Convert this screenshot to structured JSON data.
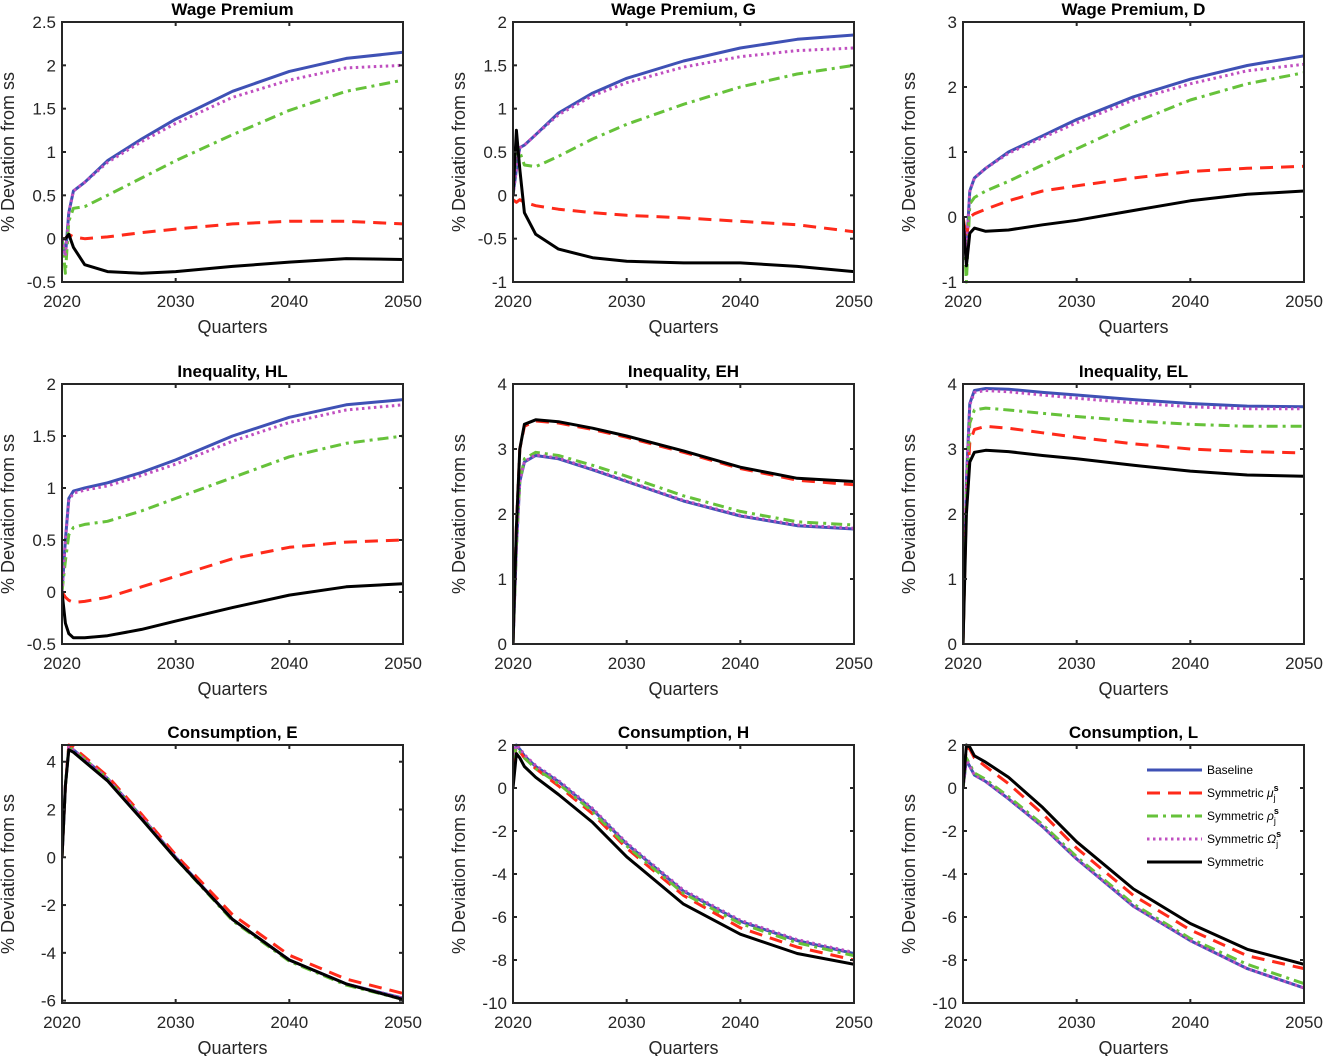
{
  "legend": {
    "placement": "inside top-right of Consumption, L panel",
    "entries": [
      {
        "label": "Baseline",
        "symbol": "",
        "sub": "",
        "sup": ""
      },
      {
        "label": "Symmetric ",
        "symbol": "μ",
        "sub": "j",
        "sup": "s"
      },
      {
        "label": "Symmetric ",
        "symbol": "ρ",
        "sub": "j",
        "sup": "s"
      },
      {
        "label": "Symmetric ",
        "symbol": "Ω",
        "sub": "j",
        "sup": "s"
      },
      {
        "label": "Symmetric",
        "symbol": "",
        "sub": "",
        "sup": ""
      }
    ]
  },
  "series_style": [
    {
      "color": "#3f51b5",
      "dash": "solid"
    },
    {
      "color": "#ff2a1a",
      "dash": "dashed"
    },
    {
      "color": "#66c23a",
      "dash": "dash-dot"
    },
    {
      "color": "#c04fc0",
      "dash": "dotted"
    },
    {
      "color": "#000000",
      "dash": "solid"
    }
  ],
  "chart_data": [
    {
      "type": "line",
      "title": "Wage Premium",
      "xlabel": "Quarters",
      "ylabel": "% Deviation from ss",
      "xlim": [
        2020,
        2050
      ],
      "ylim": [
        -0.5,
        2.5
      ],
      "xticks": [
        2020,
        2030,
        2040,
        2050
      ],
      "yticks": [
        -0.5,
        0,
        0.5,
        1,
        1.5,
        2,
        2.5
      ],
      "x": [
        2020,
        2020.3,
        2020.6,
        2021,
        2022,
        2024,
        2027,
        2030,
        2035,
        2040,
        2045,
        2050
      ],
      "series": [
        {
          "values": [
            0,
            -0.2,
            0.3,
            0.55,
            0.65,
            0.9,
            1.15,
            1.38,
            1.7,
            1.93,
            2.08,
            2.15
          ]
        },
        {
          "values": [
            0,
            0,
            0.05,
            0.02,
            0.0,
            0.02,
            0.07,
            0.11,
            0.17,
            0.2,
            0.2,
            0.17
          ]
        },
        {
          "values": [
            0,
            -0.4,
            0.2,
            0.35,
            0.37,
            0.5,
            0.7,
            0.9,
            1.2,
            1.48,
            1.7,
            1.83
          ]
        },
        {
          "values": [
            0,
            -0.2,
            0.3,
            0.55,
            0.65,
            0.88,
            1.12,
            1.33,
            1.63,
            1.83,
            1.97,
            2.0
          ]
        },
        {
          "values": [
            0,
            0,
            0.05,
            -0.1,
            -0.3,
            -0.38,
            -0.4,
            -0.38,
            -0.32,
            -0.27,
            -0.23,
            -0.24
          ]
        }
      ]
    },
    {
      "type": "line",
      "title": "Wage Premium, G",
      "xlabel": "Quarters",
      "ylabel": "% Deviation from ss",
      "xlim": [
        2020,
        2050
      ],
      "ylim": [
        -1,
        2
      ],
      "xticks": [
        2020,
        2030,
        2040,
        2050
      ],
      "yticks": [
        -1,
        -0.5,
        0,
        0.5,
        1,
        1.5,
        2
      ],
      "x": [
        2020,
        2020.3,
        2020.6,
        2021,
        2022,
        2024,
        2027,
        2030,
        2035,
        2040,
        2045,
        2050
      ],
      "series": [
        {
          "values": [
            0,
            0.3,
            0.55,
            0.58,
            0.7,
            0.95,
            1.18,
            1.35,
            1.55,
            1.7,
            1.8,
            1.85
          ]
        },
        {
          "values": [
            -0.05,
            -0.08,
            -0.05,
            -0.08,
            -0.12,
            -0.16,
            -0.2,
            -0.23,
            -0.26,
            -0.3,
            -0.34,
            -0.42
          ]
        },
        {
          "values": [
            0,
            0.6,
            0.5,
            0.35,
            0.33,
            0.45,
            0.65,
            0.82,
            1.05,
            1.25,
            1.4,
            1.5
          ]
        },
        {
          "values": [
            0,
            0.3,
            0.55,
            0.58,
            0.7,
            0.93,
            1.15,
            1.3,
            1.48,
            1.6,
            1.67,
            1.7
          ]
        },
        {
          "values": [
            0,
            0.75,
            0.3,
            -0.2,
            -0.45,
            -0.62,
            -0.72,
            -0.76,
            -0.78,
            -0.78,
            -0.82,
            -0.88
          ]
        }
      ]
    },
    {
      "type": "line",
      "title": "Wage Premium, D",
      "xlabel": "Quarters",
      "ylabel": "% Deviation from ss",
      "xlim": [
        2020,
        2050
      ],
      "ylim": [
        -1,
        3
      ],
      "xticks": [
        2020,
        2030,
        2040,
        2050
      ],
      "yticks": [
        -1,
        0,
        1,
        2,
        3
      ],
      "x": [
        2020,
        2020.3,
        2020.6,
        2021,
        2022,
        2024,
        2027,
        2030,
        2035,
        2040,
        2045,
        2050
      ],
      "series": [
        {
          "values": [
            0,
            -0.5,
            0.4,
            0.6,
            0.75,
            1.0,
            1.25,
            1.5,
            1.85,
            2.12,
            2.33,
            2.48
          ]
        },
        {
          "values": [
            0,
            -0.3,
            0,
            0.05,
            0.12,
            0.25,
            0.4,
            0.48,
            0.6,
            0.7,
            0.75,
            0.78
          ]
        },
        {
          "values": [
            0,
            -1,
            0.2,
            0.3,
            0.4,
            0.55,
            0.8,
            1.05,
            1.45,
            1.8,
            2.05,
            2.22
          ]
        },
        {
          "values": [
            0,
            -0.5,
            0.4,
            0.6,
            0.75,
            0.98,
            1.22,
            1.45,
            1.8,
            2.05,
            2.25,
            2.35
          ]
        },
        {
          "values": [
            0,
            -0.75,
            -0.25,
            -0.17,
            -0.22,
            -0.2,
            -0.12,
            -0.05,
            0.1,
            0.25,
            0.35,
            0.4
          ]
        }
      ]
    },
    {
      "type": "line",
      "title": "Inequality, HL",
      "xlabel": "Quarters",
      "ylabel": "% Deviation from ss",
      "xlim": [
        2020,
        2050
      ],
      "ylim": [
        -0.5,
        2
      ],
      "xticks": [
        2020,
        2030,
        2040,
        2050
      ],
      "yticks": [
        -0.5,
        0,
        0.5,
        1,
        1.5,
        2
      ],
      "x": [
        2020,
        2020.3,
        2020.6,
        2021,
        2022,
        2024,
        2027,
        2030,
        2035,
        2040,
        2045,
        2050
      ],
      "series": [
        {
          "values": [
            0,
            0.5,
            0.9,
            0.97,
            1.0,
            1.05,
            1.15,
            1.27,
            1.5,
            1.68,
            1.8,
            1.85
          ]
        },
        {
          "values": [
            0,
            -0.05,
            -0.08,
            -0.1,
            -0.09,
            -0.05,
            0.05,
            0.15,
            0.32,
            0.43,
            0.48,
            0.5
          ]
        },
        {
          "values": [
            0,
            0.3,
            0.55,
            0.62,
            0.65,
            0.68,
            0.78,
            0.9,
            1.1,
            1.3,
            1.43,
            1.5
          ]
        },
        {
          "values": [
            0,
            0.5,
            0.88,
            0.95,
            0.98,
            1.02,
            1.12,
            1.23,
            1.45,
            1.63,
            1.75,
            1.8
          ]
        },
        {
          "values": [
            0,
            -0.3,
            -0.4,
            -0.44,
            -0.44,
            -0.42,
            -0.36,
            -0.28,
            -0.15,
            -0.03,
            0.05,
            0.08
          ]
        }
      ]
    },
    {
      "type": "line",
      "title": "Inequality, EH",
      "xlabel": "Quarters",
      "ylabel": "% Deviation from ss",
      "xlim": [
        2020,
        2050
      ],
      "ylim": [
        0,
        4
      ],
      "xticks": [
        2020,
        2030,
        2040,
        2050
      ],
      "yticks": [
        0,
        1,
        2,
        3,
        4
      ],
      "x": [
        2020,
        2020.3,
        2020.6,
        2021,
        2022,
        2024,
        2027,
        2030,
        2035,
        2040,
        2045,
        2050
      ],
      "series": [
        {
          "values": [
            0,
            1.5,
            2.5,
            2.8,
            2.9,
            2.85,
            2.68,
            2.5,
            2.2,
            1.97,
            1.82,
            1.77
          ]
        },
        {
          "values": [
            0,
            1.8,
            3.0,
            3.35,
            3.43,
            3.4,
            3.3,
            3.18,
            2.95,
            2.7,
            2.52,
            2.45
          ]
        },
        {
          "values": [
            0,
            1.5,
            2.5,
            2.85,
            2.95,
            2.9,
            2.75,
            2.58,
            2.28,
            2.04,
            1.88,
            1.83
          ]
        },
        {
          "values": [
            0,
            1.5,
            2.5,
            2.81,
            2.91,
            2.86,
            2.69,
            2.51,
            2.21,
            1.98,
            1.83,
            1.78
          ]
        },
        {
          "values": [
            0,
            1.8,
            3.0,
            3.38,
            3.45,
            3.42,
            3.32,
            3.2,
            2.97,
            2.72,
            2.55,
            2.5
          ]
        }
      ]
    },
    {
      "type": "line",
      "title": "Inequality, EL",
      "xlabel": "Quarters",
      "ylabel": "% Deviation from ss",
      "xlim": [
        2020,
        2050
      ],
      "ylim": [
        0,
        4
      ],
      "xticks": [
        2020,
        2030,
        2040,
        2050
      ],
      "yticks": [
        0,
        1,
        2,
        3,
        4
      ],
      "x": [
        2020,
        2020.3,
        2020.6,
        2021,
        2022,
        2024,
        2027,
        2030,
        2035,
        2040,
        2045,
        2050
      ],
      "series": [
        {
          "values": [
            0,
            2.5,
            3.7,
            3.9,
            3.93,
            3.92,
            3.87,
            3.83,
            3.76,
            3.7,
            3.66,
            3.65
          ]
        },
        {
          "values": [
            0,
            2.2,
            3.1,
            3.3,
            3.35,
            3.32,
            3.25,
            3.18,
            3.08,
            3.0,
            2.96,
            2.94
          ]
        },
        {
          "values": [
            0,
            2.3,
            3.4,
            3.6,
            3.63,
            3.6,
            3.55,
            3.5,
            3.43,
            3.38,
            3.35,
            3.35
          ]
        },
        {
          "values": [
            0,
            2.5,
            3.68,
            3.87,
            3.9,
            3.88,
            3.83,
            3.78,
            3.71,
            3.65,
            3.62,
            3.62
          ]
        },
        {
          "values": [
            0,
            2.0,
            2.8,
            2.95,
            2.98,
            2.96,
            2.9,
            2.85,
            2.75,
            2.66,
            2.6,
            2.58
          ]
        }
      ]
    },
    {
      "type": "line",
      "title": "Consumption, E",
      "xlabel": "Quarters",
      "ylabel": "% Deviation from ss",
      "xlim": [
        2020,
        2050
      ],
      "ylim": [
        -6.1,
        4.7
      ],
      "xticks": [
        2020,
        2030,
        2040,
        2050
      ],
      "yticks": [
        -6,
        -4,
        -2,
        0,
        2,
        4
      ],
      "x": [
        2020,
        2020.3,
        2020.6,
        2021,
        2022,
        2024,
        2027,
        2030,
        2035,
        2040,
        2045,
        2050
      ],
      "series": [
        {
          "values": [
            0,
            3,
            4.6,
            4.5,
            4.1,
            3.3,
            1.7,
            0,
            -2.6,
            -4.3,
            -5.3,
            -5.9
          ]
        },
        {
          "values": [
            0,
            3,
            4.7,
            4.6,
            4.2,
            3.4,
            1.8,
            0.1,
            -2.4,
            -4.1,
            -5.1,
            -5.7
          ]
        },
        {
          "values": [
            0,
            3,
            4.6,
            4.5,
            4.1,
            3.3,
            1.65,
            -0.05,
            -2.65,
            -4.35,
            -5.35,
            -5.95
          ]
        },
        {
          "values": [
            0,
            3,
            4.6,
            4.5,
            4.1,
            3.3,
            1.7,
            0,
            -2.6,
            -4.3,
            -5.3,
            -5.9
          ]
        },
        {
          "values": [
            0,
            3,
            4.5,
            4.4,
            4.0,
            3.2,
            1.6,
            -0.05,
            -2.6,
            -4.3,
            -5.3,
            -5.95
          ]
        }
      ]
    },
    {
      "type": "line",
      "title": "Consumption, H",
      "xlabel": "Quarters",
      "ylabel": "% Deviation from ss",
      "xlim": [
        2020,
        2050
      ],
      "ylim": [
        -10,
        2
      ],
      "xticks": [
        2020,
        2030,
        2040,
        2050
      ],
      "yticks": [
        -10,
        -8,
        -6,
        -4,
        -2,
        0,
        2
      ],
      "x": [
        2020,
        2020.3,
        2020.6,
        2021,
        2022,
        2024,
        2027,
        2030,
        2035,
        2040,
        2045,
        2050
      ],
      "series": [
        {
          "values": [
            1.5,
            2,
            1.8,
            1.5,
            1.0,
            0.3,
            -1.0,
            -2.6,
            -4.8,
            -6.2,
            -7.1,
            -7.7
          ]
        },
        {
          "values": [
            1.2,
            1.9,
            1.7,
            1.4,
            0.9,
            0.1,
            -1.2,
            -2.8,
            -5.0,
            -6.5,
            -7.4,
            -8.0
          ]
        },
        {
          "values": [
            1.4,
            1.9,
            1.7,
            1.4,
            0.9,
            0.2,
            -1.1,
            -2.7,
            -4.9,
            -6.3,
            -7.2,
            -7.8
          ]
        },
        {
          "values": [
            1.55,
            2,
            1.85,
            1.55,
            1.05,
            0.35,
            -0.95,
            -2.55,
            -4.75,
            -6.15,
            -7.05,
            -7.65
          ]
        },
        {
          "values": [
            0,
            1.6,
            1.4,
            1.0,
            0.5,
            -0.3,
            -1.6,
            -3.2,
            -5.4,
            -6.8,
            -7.7,
            -8.2
          ]
        }
      ]
    },
    {
      "type": "line",
      "title": "Consumption, L",
      "xlabel": "Quarters",
      "ylabel": "% Deviation from ss",
      "xlim": [
        2020,
        2050
      ],
      "ylim": [
        -10,
        2
      ],
      "xticks": [
        2020,
        2030,
        2040,
        2050
      ],
      "yticks": [
        -10,
        -8,
        -6,
        -4,
        -2,
        0,
        2
      ],
      "x": [
        2020,
        2020.3,
        2020.6,
        2021,
        2022,
        2024,
        2027,
        2030,
        2035,
        2040,
        2045,
        2050
      ],
      "series": [
        {
          "values": [
            0,
            1.3,
            1.0,
            0.6,
            0.3,
            -0.5,
            -1.8,
            -3.3,
            -5.5,
            -7.1,
            -8.4,
            -9.3
          ]
        },
        {
          "values": [
            0,
            1.9,
            1.8,
            1.4,
            1.0,
            0.2,
            -1.2,
            -2.8,
            -5.0,
            -6.6,
            -7.8,
            -8.4
          ]
        },
        {
          "values": [
            0,
            1.4,
            1.1,
            0.7,
            0.4,
            -0.4,
            -1.7,
            -3.2,
            -5.4,
            -7.0,
            -8.2,
            -9.1
          ]
        },
        {
          "values": [
            0,
            1.3,
            1.0,
            0.6,
            0.3,
            -0.5,
            -1.8,
            -3.3,
            -5.5,
            -7.1,
            -8.4,
            -9.3
          ]
        },
        {
          "values": [
            0,
            2.0,
            1.9,
            1.5,
            1.2,
            0.5,
            -0.9,
            -2.5,
            -4.7,
            -6.3,
            -7.5,
            -8.2
          ]
        }
      ]
    }
  ]
}
